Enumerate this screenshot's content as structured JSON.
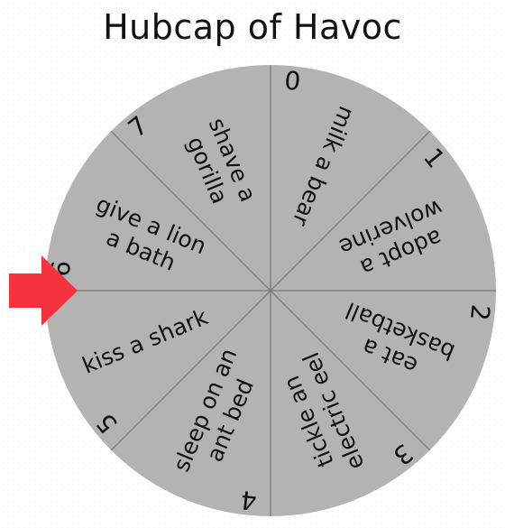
{
  "title": "Hubcap of Havoc",
  "wheel": {
    "segment_count": 8,
    "segments": [
      {
        "number": "0",
        "lines": [
          "milk a bear"
        ]
      },
      {
        "number": "1",
        "lines": [
          "adopt a",
          "wolverine"
        ]
      },
      {
        "number": "2",
        "lines": [
          "eat a",
          "basketball"
        ]
      },
      {
        "number": "3",
        "lines": [
          "tickle an",
          "electric eel"
        ]
      },
      {
        "number": "4",
        "lines": [
          "sleep on an",
          "ant bed"
        ]
      },
      {
        "number": "5",
        "lines": [
          "kiss a shark"
        ]
      },
      {
        "number": "6",
        "lines": [
          "give a lion",
          "a bath"
        ]
      },
      {
        "number": "7",
        "lines": [
          "shave a",
          "gorilla"
        ]
      }
    ]
  },
  "colors": {
    "wheel_fill": "#b3b3b3",
    "divider": "#7a7a7a",
    "pointer": "#f5333f",
    "text": "#111111"
  },
  "pointer": {
    "icon": "arrow-right-icon"
  }
}
